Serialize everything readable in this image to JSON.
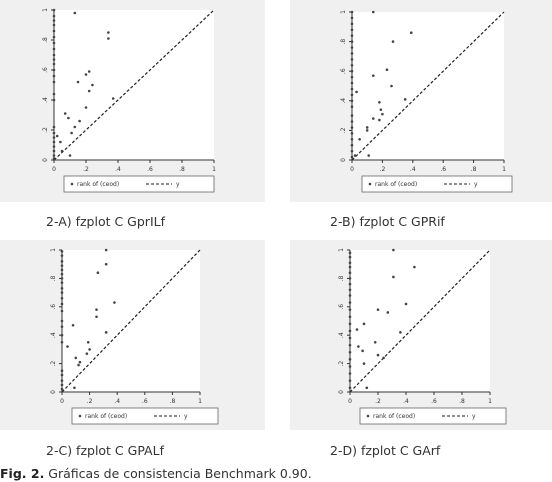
{
  "chart_data": [
    {
      "type": "scatter",
      "caption": "2-A) fzplot C GprILf",
      "xlim": [
        0,
        1
      ],
      "ylim": [
        0,
        1
      ],
      "x_ticks": [
        "0",
        ".2",
        ".4",
        ".6",
        ".8",
        "1"
      ],
      "y_ticks": [
        "0",
        ".2",
        ".4",
        ".6",
        ".8",
        "1"
      ],
      "legend": [
        "rank of (ceod)",
        "y"
      ],
      "reference_line": "y = x",
      "points": [
        [
          0,
          1.0
        ],
        [
          0,
          0.96
        ],
        [
          0,
          0.93
        ],
        [
          0,
          0.9
        ],
        [
          0,
          0.86
        ],
        [
          0,
          0.82
        ],
        [
          0,
          0.78
        ],
        [
          0,
          0.74
        ],
        [
          0,
          0.7
        ],
        [
          0,
          0.67
        ],
        [
          0,
          0.64
        ],
        [
          0,
          0.6
        ],
        [
          0,
          0.56
        ],
        [
          0,
          0.52
        ],
        [
          0,
          0.44
        ],
        [
          0,
          0.4
        ],
        [
          0,
          0.22
        ],
        [
          0,
          0.18
        ],
        [
          0,
          0.15
        ],
        [
          0,
          0.12
        ],
        [
          0,
          0.09
        ],
        [
          0,
          0.06
        ],
        [
          0,
          0.03
        ],
        [
          0,
          0.01
        ],
        [
          0.13,
          0.98
        ],
        [
          0.22,
          0.59
        ],
        [
          0.2,
          0.57
        ],
        [
          0.15,
          0.52
        ],
        [
          0.24,
          0.5
        ],
        [
          0.22,
          0.46
        ],
        [
          0.34,
          0.85
        ],
        [
          0.34,
          0.81
        ],
        [
          0.37,
          0.41
        ],
        [
          0.2,
          0.35
        ],
        [
          0.07,
          0.31
        ],
        [
          0.09,
          0.28
        ],
        [
          0.16,
          0.26
        ],
        [
          0.13,
          0.22
        ],
        [
          0.11,
          0.18
        ],
        [
          0.02,
          0.16
        ],
        [
          0.04,
          0.12
        ],
        [
          0.05,
          0.06
        ],
        [
          0.1,
          0.03
        ]
      ]
    },
    {
      "type": "scatter",
      "caption": "2-B) fzplot C GPRif",
      "xlim": [
        0,
        1
      ],
      "ylim": [
        0,
        1
      ],
      "x_ticks": [
        "0",
        ".2",
        ".4",
        ".6",
        ".8",
        "1"
      ],
      "y_ticks": [
        "0",
        ".2",
        ".4",
        ".6",
        ".8",
        "1"
      ],
      "legend": [
        "rank of (ceod)",
        "y"
      ],
      "reference_line": "y = x",
      "points": [
        [
          0,
          1.0
        ],
        [
          0,
          0.96
        ],
        [
          0,
          0.92
        ],
        [
          0,
          0.88
        ],
        [
          0,
          0.84
        ],
        [
          0,
          0.8
        ],
        [
          0,
          0.76
        ],
        [
          0,
          0.72
        ],
        [
          0,
          0.68
        ],
        [
          0,
          0.64
        ],
        [
          0,
          0.6
        ],
        [
          0,
          0.56
        ],
        [
          0,
          0.52
        ],
        [
          0,
          0.48
        ],
        [
          0,
          0.44
        ],
        [
          0,
          0.4
        ],
        [
          0,
          0.36
        ],
        [
          0,
          0.3
        ],
        [
          0,
          0.26
        ],
        [
          0,
          0.22
        ],
        [
          0,
          0.18
        ],
        [
          0,
          0.14
        ],
        [
          0,
          0.1
        ],
        [
          0,
          0.06
        ],
        [
          0,
          0.02
        ],
        [
          0.14,
          1.0
        ],
        [
          0.39,
          0.86
        ],
        [
          0.27,
          0.8
        ],
        [
          0.23,
          0.61
        ],
        [
          0.14,
          0.57
        ],
        [
          0.26,
          0.5
        ],
        [
          0.35,
          0.41
        ],
        [
          0.03,
          0.46
        ],
        [
          0.18,
          0.39
        ],
        [
          0.19,
          0.34
        ],
        [
          0.2,
          0.31
        ],
        [
          0.14,
          0.28
        ],
        [
          0.18,
          0.27
        ],
        [
          0.1,
          0.22
        ],
        [
          0.1,
          0.2
        ],
        [
          0.05,
          0.14
        ],
        [
          0.11,
          0.03
        ],
        [
          0.02,
          0.03
        ]
      ]
    },
    {
      "type": "scatter",
      "caption": "2-C) fzplot C GPALf",
      "xlim": [
        0,
        1
      ],
      "ylim": [
        0,
        1
      ],
      "x_ticks": [
        "0",
        ".2",
        ".4",
        ".6",
        ".8",
        "1"
      ],
      "y_ticks": [
        "0",
        ".2",
        ".4",
        ".6",
        ".8",
        "1"
      ],
      "legend": [
        "rank of (ceod)",
        "y"
      ],
      "reference_line": "y = x",
      "points": [
        [
          0,
          0.99
        ],
        [
          0,
          0.96
        ],
        [
          0,
          0.92
        ],
        [
          0,
          0.89
        ],
        [
          0,
          0.86
        ],
        [
          0,
          0.83
        ],
        [
          0,
          0.8
        ],
        [
          0,
          0.77
        ],
        [
          0,
          0.73
        ],
        [
          0,
          0.7
        ],
        [
          0,
          0.66
        ],
        [
          0,
          0.62
        ],
        [
          0,
          0.57
        ],
        [
          0,
          0.5
        ],
        [
          0,
          0.46
        ],
        [
          0,
          0.4
        ],
        [
          0,
          0.35
        ],
        [
          0,
          0.15
        ],
        [
          0,
          0.12
        ],
        [
          0,
          0.08
        ],
        [
          0,
          0.05
        ],
        [
          0,
          0.02
        ],
        [
          0.32,
          1.0
        ],
        [
          0.32,
          0.9
        ],
        [
          0.26,
          0.84
        ],
        [
          0.38,
          0.63
        ],
        [
          0.25,
          0.58
        ],
        [
          0.25,
          0.53
        ],
        [
          0.32,
          0.42
        ],
        [
          0.08,
          0.47
        ],
        [
          0.19,
          0.35
        ],
        [
          0.2,
          0.3
        ],
        [
          0.18,
          0.27
        ],
        [
          0.1,
          0.24
        ],
        [
          0.13,
          0.21
        ],
        [
          0.12,
          0.19
        ],
        [
          0.04,
          0.32
        ],
        [
          0.09,
          0.03
        ]
      ]
    },
    {
      "type": "scatter",
      "caption": "2-D) fzplot C GArf",
      "xlim": [
        0,
        1
      ],
      "ylim": [
        0,
        1
      ],
      "x_ticks": [
        "0",
        ".2",
        ".4",
        ".6",
        ".8",
        "1"
      ],
      "y_ticks": [
        "0",
        ".2",
        ".4",
        ".6",
        ".8",
        "1"
      ],
      "legend": [
        "rank of (ceod)",
        "y"
      ],
      "reference_line": "y = x",
      "points": [
        [
          0,
          0.98
        ],
        [
          0,
          0.95
        ],
        [
          0,
          0.91
        ],
        [
          0,
          0.88
        ],
        [
          0,
          0.84
        ],
        [
          0,
          0.8
        ],
        [
          0,
          0.76
        ],
        [
          0,
          0.72
        ],
        [
          0,
          0.68
        ],
        [
          0,
          0.63
        ],
        [
          0,
          0.58
        ],
        [
          0,
          0.53
        ],
        [
          0,
          0.48
        ],
        [
          0,
          0.43
        ],
        [
          0,
          0.38
        ],
        [
          0,
          0.33
        ],
        [
          0,
          0.28
        ],
        [
          0,
          0.23
        ],
        [
          0,
          0.18
        ],
        [
          0,
          0.13
        ],
        [
          0,
          0.08
        ],
        [
          0,
          0.03
        ],
        [
          0.31,
          1.0
        ],
        [
          0.46,
          0.88
        ],
        [
          0.31,
          0.81
        ],
        [
          0.4,
          0.62
        ],
        [
          0.27,
          0.56
        ],
        [
          0.2,
          0.58
        ],
        [
          0.1,
          0.48
        ],
        [
          0.05,
          0.44
        ],
        [
          0.36,
          0.42
        ],
        [
          0.18,
          0.35
        ],
        [
          0.06,
          0.32
        ],
        [
          0.09,
          0.29
        ],
        [
          0.2,
          0.26
        ],
        [
          0.24,
          0.24
        ],
        [
          0.1,
          0.2
        ],
        [
          0.12,
          0.03
        ]
      ]
    }
  ],
  "figure_caption": {
    "label": "Fig. 2.",
    "text": " Gráficas de consistencia Benchmark 0.90."
  }
}
